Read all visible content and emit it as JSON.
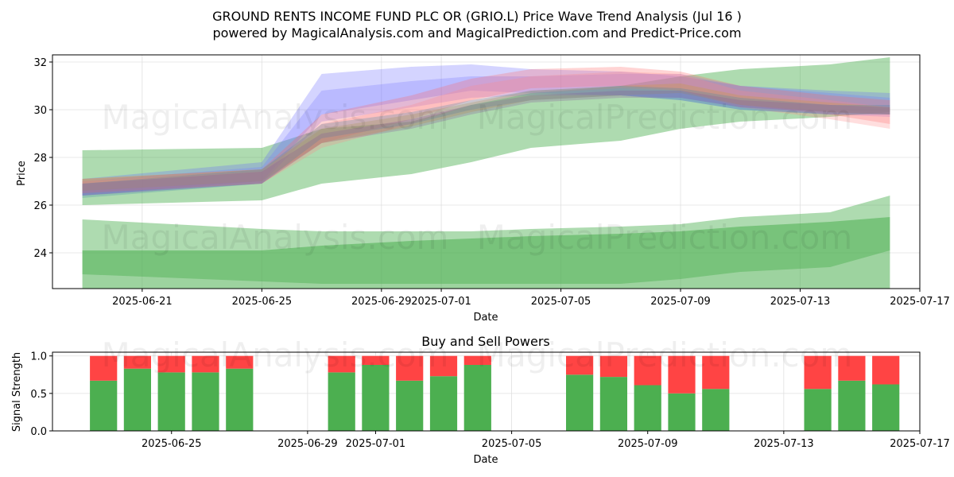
{
  "header": {
    "title_line1": "GROUND RENTS INCOME FUND PLC OR (GRIO.L) Price Wave Trend Analysis (Jul 16 )",
    "title_line2": "powered by MagicalAnalysis.com and MagicalPrediction.com and Predict-Price.com"
  },
  "watermarks": [
    "MagicalAnalysis.com",
    "MagicalPrediction.com"
  ],
  "colors": {
    "green": "#4caf50",
    "red": "#ff4444",
    "grid": "#e0e0e0"
  },
  "chart_data": [
    {
      "type": "area",
      "title": "",
      "xlabel": "Date",
      "ylabel": "Price",
      "xlim": [
        "2025-06-18",
        "2025-07-17"
      ],
      "ylim": [
        22.5,
        32.3
      ],
      "grid": true,
      "xticks": [
        "2025-06-21",
        "2025-06-25",
        "2025-06-29",
        "2025-07-01",
        "2025-07-05",
        "2025-07-09",
        "2025-07-13",
        "2025-07-17"
      ],
      "yticks": [
        24,
        26,
        28,
        30,
        32
      ],
      "dates": [
        "2025-06-19",
        "2025-06-25",
        "2025-06-27",
        "2025-06-30",
        "2025-07-02",
        "2025-07-04",
        "2025-07-07",
        "2025-07-09",
        "2025-07-11",
        "2025-07-14",
        "2025-07-16"
      ],
      "upper_green_band": {
        "upper": [
          28.3,
          28.4,
          29.2,
          29.5,
          30.2,
          30.7,
          31.0,
          31.4,
          31.7,
          31.9,
          32.2
        ],
        "lower": [
          26.0,
          26.2,
          26.9,
          27.3,
          27.8,
          28.4,
          28.7,
          29.2,
          29.5,
          29.7,
          29.9
        ]
      },
      "lower_green_outer_band": {
        "upper": [
          25.4,
          25.0,
          24.9,
          24.9,
          24.9,
          25.0,
          25.1,
          25.2,
          25.5,
          25.7,
          26.4
        ],
        "lower": [
          23.1,
          22.8,
          22.7,
          22.7,
          22.7,
          22.7,
          22.7,
          22.9,
          23.2,
          23.4,
          24.1
        ]
      },
      "lower_green_inner_band": {
        "upper": [
          24.1,
          24.1,
          24.3,
          24.5,
          24.6,
          24.7,
          24.8,
          24.9,
          25.1,
          25.3,
          25.5
        ],
        "lower": [
          22.5,
          22.5,
          22.5,
          22.5,
          22.5,
          22.5,
          22.5,
          22.5,
          22.5,
          22.5,
          22.5
        ]
      },
      "prediction_waves": [
        {
          "color": "#6666ff",
          "upper": [
            27.1,
            27.8,
            31.5,
            31.8,
            31.9,
            31.7,
            31.6,
            31.4,
            31.0,
            30.8,
            30.7
          ],
          "lower": [
            26.4,
            27.0,
            29.8,
            30.4,
            30.8,
            30.7,
            30.6,
            30.4,
            30.0,
            29.8,
            29.8
          ]
        },
        {
          "color": "#7777ff",
          "upper": [
            27.0,
            27.6,
            30.8,
            31.2,
            31.4,
            31.4,
            31.5,
            31.5,
            31.0,
            30.7,
            30.5
          ],
          "lower": [
            26.4,
            26.9,
            29.5,
            30.1,
            30.5,
            30.6,
            30.6,
            30.5,
            30.1,
            29.8,
            29.7
          ]
        },
        {
          "color": "#ff6666",
          "upper": [
            27.1,
            27.5,
            29.8,
            30.6,
            31.3,
            31.7,
            31.8,
            31.6,
            31.0,
            30.6,
            30.4
          ],
          "lower": [
            26.5,
            26.9,
            28.6,
            29.6,
            30.4,
            30.9,
            31.0,
            30.8,
            30.2,
            29.8,
            29.4
          ]
        },
        {
          "color": "#ff8888",
          "upper": [
            27.0,
            27.4,
            29.4,
            30.2,
            31.0,
            31.4,
            31.6,
            31.5,
            30.8,
            30.4,
            30.1
          ],
          "lower": [
            26.5,
            26.9,
            28.4,
            29.4,
            30.2,
            30.7,
            30.9,
            30.8,
            30.1,
            29.6,
            29.2
          ]
        },
        {
          "color": "#cc9933",
          "upper": [
            27.1,
            27.5,
            29.2,
            29.8,
            30.3,
            30.8,
            31.0,
            31.1,
            30.6,
            30.3,
            30.1
          ],
          "lower": [
            26.6,
            27.0,
            28.6,
            29.3,
            29.9,
            30.4,
            30.6,
            30.7,
            30.2,
            29.9,
            29.8
          ]
        },
        {
          "color": "#4488aa",
          "upper": [
            26.9,
            27.5,
            29.4,
            29.9,
            30.4,
            30.8,
            31.0,
            30.9,
            30.5,
            30.2,
            30.2
          ],
          "lower": [
            26.3,
            26.9,
            28.8,
            29.4,
            30.0,
            30.4,
            30.6,
            30.4,
            30.0,
            29.8,
            29.8
          ]
        },
        {
          "color": "#885599",
          "upper": [
            26.9,
            27.4,
            29.0,
            29.6,
            30.2,
            30.6,
            30.8,
            30.8,
            30.4,
            30.2,
            30.1
          ],
          "lower": [
            26.4,
            26.9,
            28.6,
            29.2,
            29.8,
            30.3,
            30.5,
            30.5,
            30.1,
            29.9,
            29.8
          ]
        }
      ]
    },
    {
      "type": "bar",
      "title": "Buy and Sell Powers",
      "xlabel": "Date",
      "ylabel": "Signal Strength",
      "xlim": [
        "2025-06-21.5",
        "2025-07-17"
      ],
      "ylim": [
        0,
        1.05
      ],
      "grid": true,
      "xticks": [
        "2025-06-25",
        "2025-06-29",
        "2025-07-01",
        "2025-07-05",
        "2025-07-09",
        "2025-07-13",
        "2025-07-17"
      ],
      "yticks": [
        "0.0",
        "0.5",
        "1.0"
      ],
      "series": [
        {
          "name": "",
          "color": "#4caf50",
          "values": [
            0.67,
            0.83,
            0.78,
            0.78,
            0.83,
            0.78,
            0.88,
            0.67,
            0.73,
            0.88,
            0.75,
            0.72,
            0.61,
            0.5,
            0.56,
            0.56,
            0.67,
            0.62
          ]
        },
        {
          "name": "",
          "color": "#ff4444",
          "values": [
            0.33,
            0.17,
            0.22,
            0.22,
            0.17,
            0.22,
            0.12,
            0.33,
            0.27,
            0.12,
            0.25,
            0.28,
            0.39,
            0.5,
            0.44,
            0.44,
            0.33,
            0.38
          ]
        }
      ],
      "categories": [
        "2025-06-23",
        "2025-06-24",
        "2025-06-25",
        "2025-06-26",
        "2025-06-27",
        "2025-06-30",
        "2025-07-01",
        "2025-07-02",
        "2025-07-03",
        "2025-07-04",
        "2025-07-07",
        "2025-07-08",
        "2025-07-09",
        "2025-07-10",
        "2025-07-11",
        "2025-07-14",
        "2025-07-15",
        "2025-07-16"
      ]
    }
  ]
}
